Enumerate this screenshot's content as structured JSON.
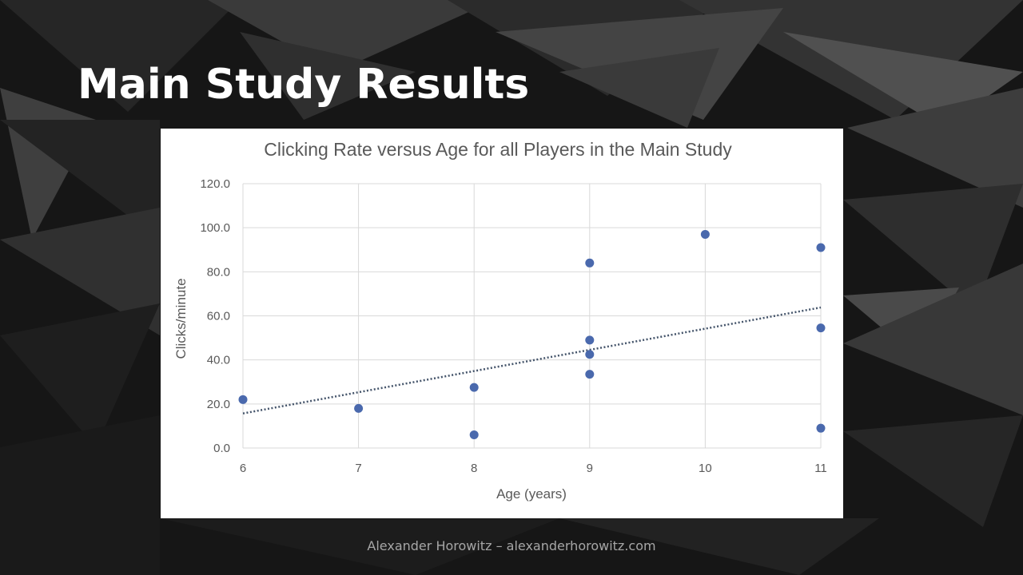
{
  "slide": {
    "title": "Main Study Results",
    "footer": "Alexander Horowitz – alexanderhorowitz.com"
  },
  "colors": {
    "background": "#151515",
    "marker": "#4a69ad",
    "trendline": "#44546a",
    "gridline": "#d9d9d9"
  },
  "chart_data": {
    "type": "scatter",
    "title": "Clicking Rate versus Age for all Players in the Main Study",
    "xlabel": "Age (years)",
    "ylabel": "Clicks/minute",
    "xlim": [
      6,
      11
    ],
    "ylim": [
      0,
      120
    ],
    "x_ticks": [
      "6",
      "7",
      "8",
      "9",
      "10",
      "11"
    ],
    "y_ticks": [
      "0.0",
      "20.0",
      "40.0",
      "60.0",
      "80.0",
      "100.0",
      "120.0"
    ],
    "grid": true,
    "legend": "none",
    "series": [
      {
        "x": [
          6,
          7,
          8,
          8,
          9,
          9,
          9,
          9,
          10,
          11,
          11,
          11
        ],
        "y": [
          22.0,
          18.0,
          27.5,
          6.0,
          84.0,
          49.0,
          42.5,
          33.5,
          97.0,
          91.0,
          54.5,
          9.0
        ]
      }
    ],
    "trendline": {
      "type": "linear",
      "style": "dotted",
      "start": [
        6,
        15.7
      ],
      "end": [
        11,
        63.8
      ]
    }
  }
}
